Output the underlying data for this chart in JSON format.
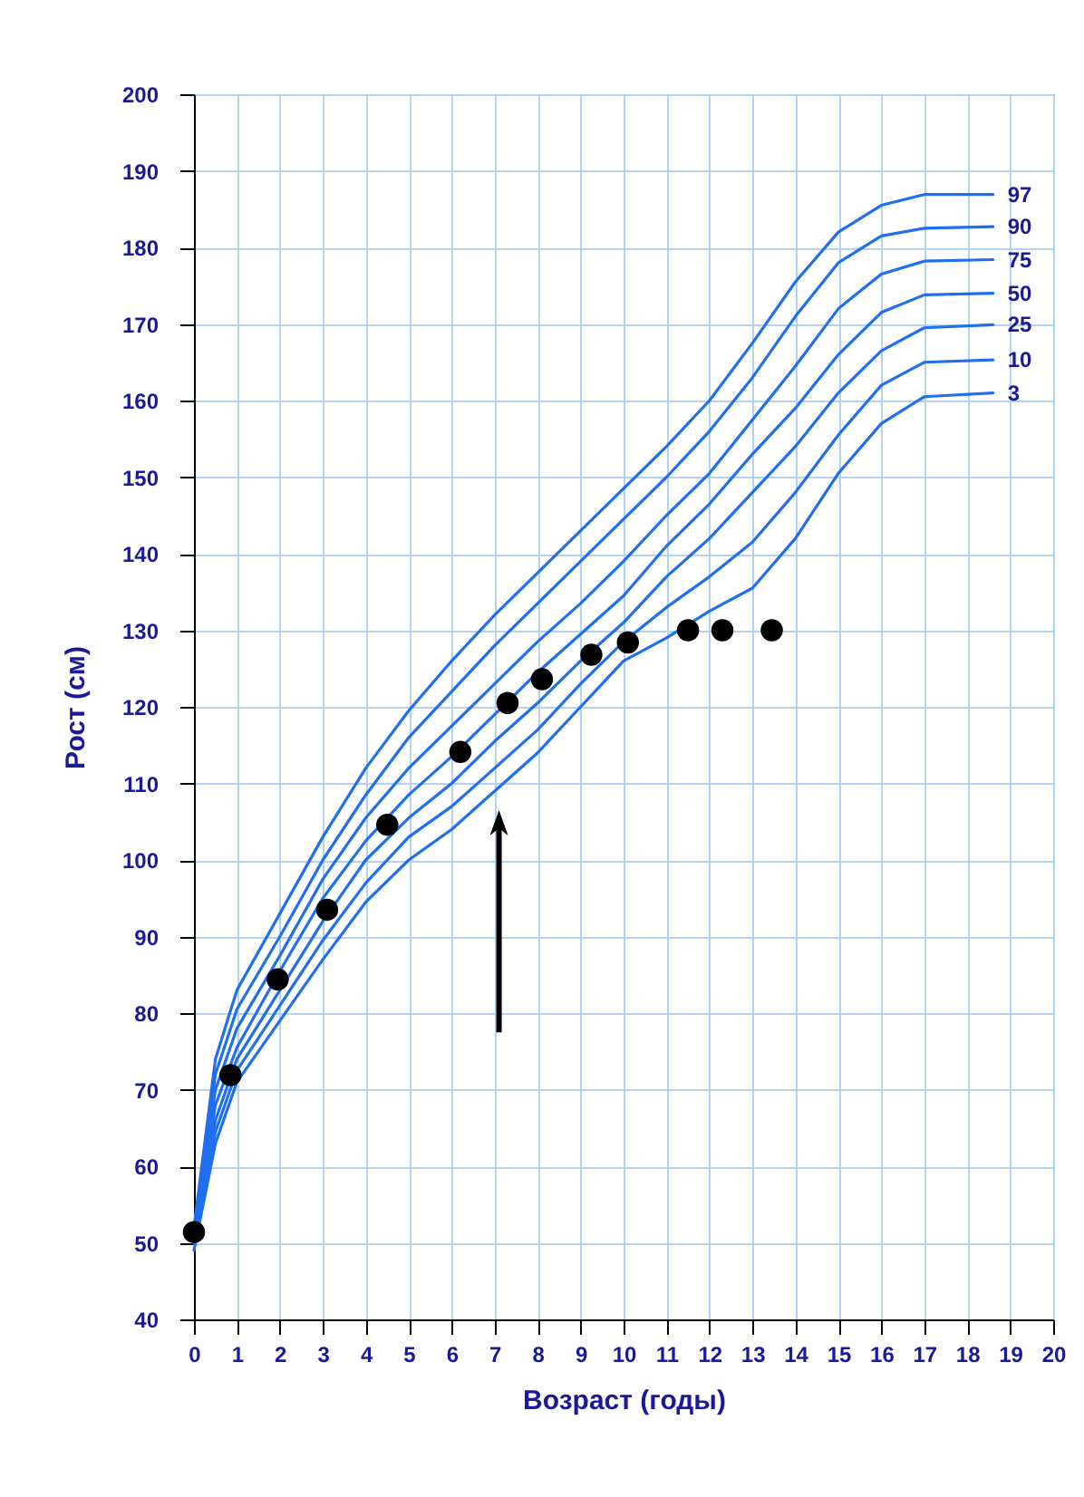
{
  "chart_data": {
    "type": "line",
    "xlabel": "Возраст (годы)",
    "ylabel": "Рост   (см)",
    "xlim": [
      0,
      20
    ],
    "ylim": [
      40,
      200
    ],
    "xticks": [
      0,
      1,
      2,
      3,
      4,
      5,
      6,
      7,
      8,
      9,
      10,
      11,
      12,
      13,
      14,
      15,
      16,
      17,
      18,
      19,
      20
    ],
    "yticks": [
      40,
      50,
      60,
      70,
      80,
      90,
      100,
      110,
      120,
      130,
      140,
      150,
      160,
      170,
      180,
      190,
      200
    ],
    "grid": true,
    "x": [
      0,
      0.5,
      1,
      2,
      3,
      4,
      5,
      6,
      7,
      8,
      9,
      10,
      11,
      12,
      13,
      14,
      15,
      16,
      17,
      18.6
    ],
    "series": [
      {
        "name": "97",
        "color": "#1f6ff0",
        "values": [
          52,
          74,
          83,
          93,
          103,
          112,
          119.5,
          126,
          132,
          137.5,
          143,
          148.5,
          154,
          160,
          167.5,
          175.5,
          182,
          185.5,
          186.9,
          186.9
        ]
      },
      {
        "name": "90",
        "color": "#1f6ff0",
        "values": [
          51.5,
          72,
          80.5,
          90,
          100,
          108.5,
          116,
          122,
          128,
          133.5,
          139,
          144.5,
          150,
          156,
          163,
          171,
          178,
          181.5,
          182.5,
          182.7
        ]
      },
      {
        "name": "75",
        "color": "#1f6ff0",
        "values": [
          51,
          70,
          78,
          87.5,
          97.5,
          105.5,
          112,
          117.5,
          123,
          128.5,
          133.5,
          139,
          145,
          150.5,
          157.5,
          164.5,
          172,
          176.5,
          178.2,
          178.4
        ]
      },
      {
        "name": "50",
        "color": "#1f6ff0",
        "values": [
          51,
          68,
          75.5,
          85.5,
          95,
          102.5,
          108.5,
          113.5,
          119,
          124.5,
          129.5,
          134.5,
          141,
          146.5,
          153,
          159,
          166,
          171.5,
          173.8,
          174
        ]
      },
      {
        "name": "25",
        "color": "#1f6ff0",
        "values": [
          50.5,
          66,
          74,
          83,
          92,
          100,
          105.5,
          110,
          115.5,
          120.5,
          126,
          131,
          137,
          142,
          148,
          154,
          161,
          166.5,
          169.5,
          169.9
        ]
      },
      {
        "name": "10",
        "color": "#1f6ff0",
        "values": [
          50,
          64.5,
          72.5,
          81,
          89.5,
          97,
          103,
          107,
          112,
          117,
          123,
          128.5,
          133,
          137,
          141.5,
          148,
          155.5,
          162,
          165,
          165.3
        ]
      },
      {
        "name": "3",
        "color": "#1f6ff0",
        "values": [
          49,
          63,
          71,
          79,
          87,
          94.5,
          100,
          104,
          109,
          114,
          120,
          126,
          129,
          132.5,
          135.5,
          142,
          150.5,
          157,
          160.5,
          161
        ]
      },
      {
        "type": "scatter",
        "marker": "circle",
        "color": "#000000",
        "x": [
          0,
          0.85,
          1.95,
          3.1,
          4.5,
          6.2,
          7.3,
          8.1,
          9.25,
          10.1,
          11.5,
          12.3,
          13.45
        ],
        "values": [
          51.4,
          71.9,
          84.4,
          93.5,
          104.6,
          114.1,
          120.5,
          123.6,
          126.8,
          128.4,
          130,
          130,
          130
        ]
      }
    ]
  }
}
